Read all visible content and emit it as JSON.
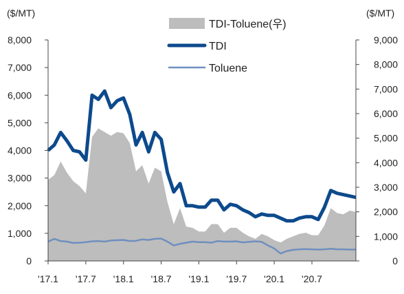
{
  "chart_data": {
    "type": "area",
    "title": "",
    "left_axis": {
      "unit_label": "($/MT)",
      "ylim": [
        0,
        8000
      ],
      "ticks": [
        "0",
        "1,000",
        "2,000",
        "3,000",
        "4,000",
        "5,000",
        "6,000",
        "7,000",
        "8,000"
      ]
    },
    "right_axis": {
      "unit_label": "($/MT)",
      "ylim": [
        0,
        9000
      ],
      "ticks": [
        "0",
        "1,000",
        "2,000",
        "3,000",
        "4,000",
        "5,000",
        "6,000",
        "7,000",
        "8,000",
        "9,000"
      ]
    },
    "x_ticks": [
      "'17.1",
      "'17.7",
      "'18.1",
      "'18.7",
      "'19.1",
      "'19.7",
      "'20.1",
      "'20.7"
    ],
    "x_months_range": [
      0,
      49
    ],
    "legend_position": "top",
    "grid": false,
    "series": [
      {
        "name": "TDI-Toluene(우)",
        "type": "area",
        "axis": "right",
        "color": "#bdbdbd",
        "points": [
          [
            0,
            3300
          ],
          [
            1,
            3500
          ],
          [
            2,
            4050
          ],
          [
            3,
            3600
          ],
          [
            4,
            3250
          ],
          [
            5,
            3050
          ],
          [
            6,
            2750
          ],
          [
            7,
            5050
          ],
          [
            8,
            5400
          ],
          [
            9,
            5250
          ],
          [
            10,
            5100
          ],
          [
            11,
            5250
          ],
          [
            12,
            5200
          ],
          [
            13,
            4800
          ],
          [
            14,
            3650
          ],
          [
            15,
            3900
          ],
          [
            16,
            3150
          ],
          [
            17,
            3800
          ],
          [
            18,
            3650
          ],
          [
            19,
            2400
          ],
          [
            20,
            1500
          ],
          [
            21,
            2150
          ],
          [
            22,
            1400
          ],
          [
            23,
            1350
          ],
          [
            24,
            1200
          ],
          [
            25,
            1200
          ],
          [
            26,
            1500
          ],
          [
            27,
            1500
          ],
          [
            28,
            1150
          ],
          [
            29,
            1350
          ],
          [
            30,
            1350
          ],
          [
            31,
            1150
          ],
          [
            32,
            1000
          ],
          [
            33,
            900
          ],
          [
            34,
            1100
          ],
          [
            35,
            1000
          ],
          [
            36,
            850
          ],
          [
            37,
            750
          ],
          [
            38,
            900
          ],
          [
            39,
            1000
          ],
          [
            40,
            1100
          ],
          [
            41,
            1150
          ],
          [
            42,
            1050
          ],
          [
            43,
            1050
          ],
          [
            44,
            1450
          ],
          [
            45,
            2150
          ],
          [
            46,
            1950
          ],
          [
            47,
            1900
          ],
          [
            48,
            2050
          ],
          [
            49,
            2000
          ]
        ]
      },
      {
        "name": "TDI",
        "type": "line",
        "axis": "left",
        "color": "#0d4a8c",
        "points": [
          [
            0,
            4000
          ],
          [
            1,
            4200
          ],
          [
            2,
            4650
          ],
          [
            3,
            4350
          ],
          [
            4,
            4000
          ],
          [
            5,
            3950
          ],
          [
            6,
            3650
          ],
          [
            7,
            6000
          ],
          [
            8,
            5850
          ],
          [
            9,
            6150
          ],
          [
            10,
            5550
          ],
          [
            11,
            5800
          ],
          [
            12,
            5900
          ],
          [
            13,
            5300
          ],
          [
            14,
            4200
          ],
          [
            15,
            4650
          ],
          [
            16,
            3950
          ],
          [
            17,
            4650
          ],
          [
            18,
            4400
          ],
          [
            19,
            3200
          ],
          [
            20,
            2500
          ],
          [
            21,
            2800
          ],
          [
            22,
            2000
          ],
          [
            23,
            2000
          ],
          [
            24,
            1950
          ],
          [
            25,
            1950
          ],
          [
            26,
            2200
          ],
          [
            27,
            2200
          ],
          [
            28,
            1850
          ],
          [
            29,
            2050
          ],
          [
            30,
            2000
          ],
          [
            31,
            1850
          ],
          [
            32,
            1750
          ],
          [
            33,
            1600
          ],
          [
            34,
            1700
          ],
          [
            35,
            1650
          ],
          [
            36,
            1650
          ],
          [
            37,
            1550
          ],
          [
            38,
            1450
          ],
          [
            39,
            1450
          ],
          [
            40,
            1550
          ],
          [
            41,
            1600
          ],
          [
            42,
            1600
          ],
          [
            43,
            1500
          ],
          [
            44,
            1950
          ],
          [
            45,
            2550
          ],
          [
            46,
            2450
          ],
          [
            47,
            2400
          ],
          [
            48,
            2350
          ],
          [
            49,
            2300
          ]
        ]
      },
      {
        "name": "Toluene",
        "type": "line",
        "axis": "left",
        "color": "#6f8fbf",
        "points": [
          [
            0,
            700
          ],
          [
            1,
            800
          ],
          [
            2,
            720
          ],
          [
            3,
            700
          ],
          [
            4,
            650
          ],
          [
            5,
            660
          ],
          [
            6,
            680
          ],
          [
            7,
            710
          ],
          [
            8,
            720
          ],
          [
            9,
            700
          ],
          [
            10,
            740
          ],
          [
            11,
            750
          ],
          [
            12,
            760
          ],
          [
            13,
            720
          ],
          [
            14,
            730
          ],
          [
            15,
            780
          ],
          [
            16,
            760
          ],
          [
            17,
            800
          ],
          [
            18,
            810
          ],
          [
            19,
            700
          ],
          [
            20,
            560
          ],
          [
            21,
            620
          ],
          [
            22,
            660
          ],
          [
            23,
            700
          ],
          [
            24,
            680
          ],
          [
            25,
            680
          ],
          [
            26,
            660
          ],
          [
            27,
            720
          ],
          [
            28,
            700
          ],
          [
            29,
            700
          ],
          [
            30,
            710
          ],
          [
            31,
            670
          ],
          [
            32,
            690
          ],
          [
            33,
            710
          ],
          [
            34,
            690
          ],
          [
            35,
            560
          ],
          [
            36,
            450
          ],
          [
            37,
            270
          ],
          [
            38,
            360
          ],
          [
            39,
            400
          ],
          [
            40,
            420
          ],
          [
            41,
            430
          ],
          [
            42,
            420
          ],
          [
            43,
            410
          ],
          [
            44,
            420
          ],
          [
            45,
            440
          ],
          [
            46,
            420
          ],
          [
            47,
            420
          ],
          [
            48,
            410
          ],
          [
            49,
            410
          ]
        ]
      }
    ]
  }
}
